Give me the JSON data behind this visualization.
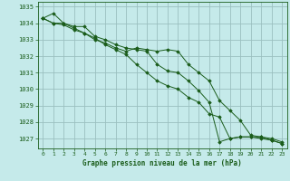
{
  "title": "Graphe pression niveau de la mer (hPa)",
  "bg_color": "#c5eaea",
  "grid_color": "#9abfbf",
  "line_color": "#1a5c1a",
  "xlim": [
    -0.5,
    23.5
  ],
  "ylim": [
    1026.4,
    1035.3
  ],
  "yticks": [
    1027,
    1028,
    1029,
    1030,
    1031,
    1032,
    1033,
    1034,
    1035
  ],
  "xticks": [
    0,
    1,
    2,
    3,
    4,
    5,
    6,
    7,
    8,
    9,
    10,
    11,
    12,
    13,
    14,
    15,
    16,
    17,
    18,
    19,
    20,
    21,
    22,
    23
  ],
  "series": [
    [
      1034.3,
      1034.6,
      1034.0,
      1033.8,
      1033.8,
      1033.2,
      1033.0,
      1032.7,
      1032.5,
      1032.4,
      1032.3,
      1031.5,
      1031.1,
      1031.0,
      1030.5,
      1029.9,
      1029.2,
      1026.8,
      1027.0,
      1027.1,
      1027.1,
      1027.1,
      1026.9,
      1026.7
    ],
    [
      1034.3,
      1034.0,
      1034.0,
      1033.7,
      1033.4,
      1033.0,
      1032.8,
      1032.5,
      1032.3,
      1032.5,
      1032.4,
      1032.3,
      1032.4,
      1032.3,
      1031.5,
      1031.0,
      1030.5,
      1029.3,
      1028.7,
      1028.1,
      1027.2,
      1027.1,
      1027.0,
      1026.8
    ],
    [
      1034.3,
      1034.0,
      1033.9,
      1033.6,
      1033.4,
      1033.1,
      1032.7,
      1032.4,
      1032.1,
      1031.5,
      1031.0,
      1030.5,
      1030.2,
      1030.0,
      1029.5,
      1029.2,
      1028.5,
      1028.3,
      1027.0,
      1027.1,
      1027.1,
      1027.0,
      1026.9,
      1026.7
    ]
  ]
}
